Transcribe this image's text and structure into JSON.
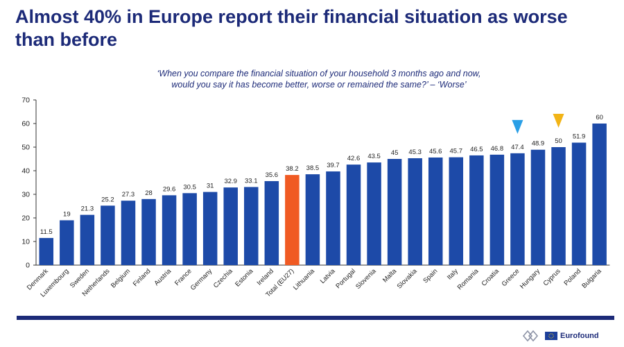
{
  "title": "Almost 40% in Europe report their financial situation as worse than before",
  "subtitle_line1": "‘When you compare the financial situation of your household 3 months ago and now,",
  "subtitle_line2": "would you say it has become better, worse or remained the same?’ – ‘Worse’",
  "brand": {
    "name": "Eurofound"
  },
  "colors": {
    "bar": "#1d4aa8",
    "highlight": "#f05a23",
    "title": "#1c2a78",
    "marker_blue": "#2a9fe6",
    "marker_yellow": "#f2b416"
  },
  "chart_data": {
    "type": "bar",
    "title": "Almost 40% in Europe report their financial situation as worse than before",
    "xlabel": "",
    "ylabel": "",
    "ylim": [
      0,
      70
    ],
    "yticks": [
      0,
      10,
      20,
      30,
      40,
      50,
      60,
      70
    ],
    "grid": false,
    "categories": [
      "Denmark",
      "Luxembourg",
      "Sweden",
      "Netherlands",
      "Belgium",
      "Finland",
      "Austria",
      "France",
      "Germany",
      "Czechia",
      "Estonia",
      "Ireland",
      "Total (EU27)",
      "Lithuania",
      "Latvia",
      "Portugal",
      "Slovenia",
      "Malta",
      "Slovakia",
      "Spain",
      "Italy",
      "Romania",
      "Croatia",
      "Greece",
      "Hungary",
      "Cyprus",
      "Poland",
      "Bulgaria"
    ],
    "values": [
      11.5,
      19,
      21.3,
      25.2,
      27.3,
      28,
      29.6,
      30.5,
      31,
      32.9,
      33.1,
      35.6,
      38.2,
      38.5,
      39.7,
      42.6,
      43.5,
      45,
      45.3,
      45.6,
      45.7,
      46.5,
      46.8,
      47.4,
      48.9,
      50,
      51.9,
      60
    ],
    "labels": [
      "11.5",
      "19",
      "21.3",
      "25.2",
      "27.3",
      "28",
      "29.6",
      "30.5",
      "31",
      "32.9",
      "33.1",
      "35.6",
      "38.2",
      "38.5",
      "39.7",
      "42.6",
      "43.5",
      "45",
      "45.3",
      "45.6",
      "45.7",
      "46.5",
      "46.8",
      "47.4",
      "48.9",
      "50",
      "51.9",
      "60"
    ],
    "highlight_category": "Total (EU27)",
    "markers": [
      {
        "category": "Greece",
        "color": "blue"
      },
      {
        "category": "Cyprus",
        "color": "yellow"
      }
    ]
  }
}
